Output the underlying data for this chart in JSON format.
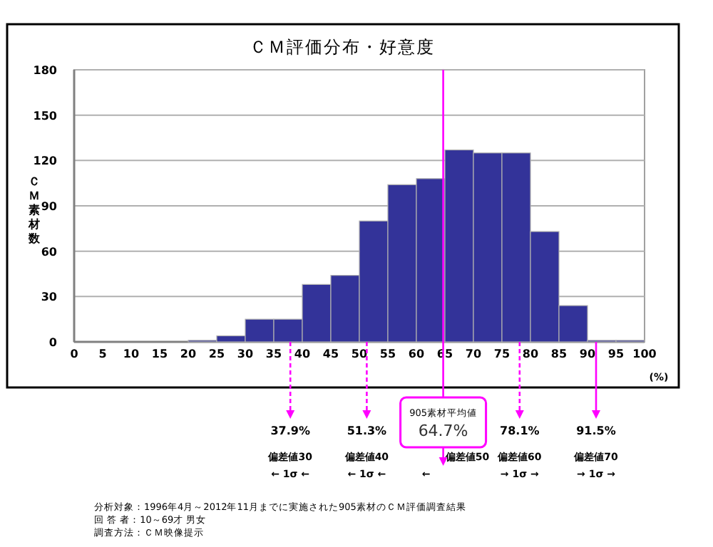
{
  "chart_data": {
    "type": "histogram",
    "title": "ＣＭ評価分布・好意度",
    "ylabel": "ＣＭ素材数",
    "xlabel": "(%)",
    "bins": [
      0,
      5,
      10,
      15,
      20,
      25,
      30,
      35,
      40,
      45,
      50,
      55,
      60,
      65,
      70,
      75,
      80,
      85,
      90,
      95,
      100
    ],
    "values": [
      0,
      0,
      0,
      0,
      1,
      4,
      15,
      15,
      38,
      44,
      80,
      104,
      108,
      127,
      125,
      125,
      73,
      24,
      1,
      1
    ],
    "color": "#333399",
    "xlim": [
      0,
      100
    ],
    "xticks": [
      0,
      5,
      10,
      15,
      20,
      25,
      30,
      35,
      40,
      45,
      50,
      55,
      60,
      65,
      70,
      75,
      80,
      85,
      90,
      95,
      100
    ],
    "ylim": [
      0,
      180
    ],
    "yticks": [
      0,
      30,
      60,
      90,
      120,
      150,
      180
    ],
    "grid": "y",
    "ref_lines": [
      {
        "axis": "x",
        "value": 37.9,
        "label": "37.9%",
        "color": "#ff00ff",
        "line_style": "dashed"
      },
      {
        "axis": "x",
        "value": 51.3,
        "label": "51.3%",
        "color": "#ff00ff",
        "line_style": "dashed"
      },
      {
        "axis": "x",
        "value": 64.7,
        "label": "64.7%",
        "color": "#ff00ff",
        "line_style": "solid"
      },
      {
        "axis": "x",
        "value": 78.1,
        "label": "78.1%",
        "color": "#ff00ff",
        "line_style": "dashed"
      },
      {
        "axis": "x",
        "value": 91.5,
        "label": "91.5%",
        "color": "#ff00ff",
        "line_style": "solid"
      }
    ],
    "annotations": [
      "偏差値30",
      "偏差値40",
      "偏差値50",
      "偏差値60",
      "偏差値70",
      "← 1σ ←",
      "← 1σ ←",
      "←",
      "→ 1σ →",
      "→ 1σ →",
      "905素材平均値",
      "分析対象：1996年4月～2012年11月までに実施された905素材のＣＭ評価調査結果",
      "回 答 者：10～69才 男女",
      "調査方法：ＣＭ映像提示"
    ]
  }
}
